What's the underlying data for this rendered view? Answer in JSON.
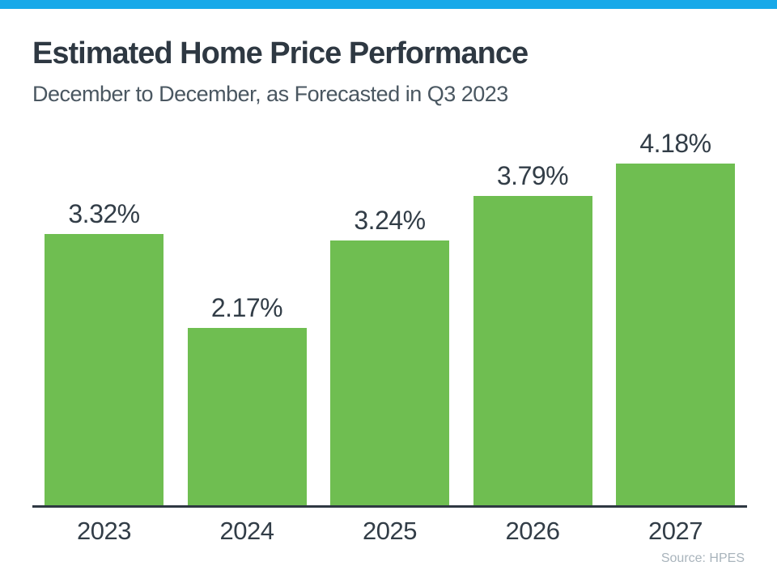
{
  "header": {
    "title": "Estimated Home Price Performance",
    "subtitle": "December to December, as Forecasted in Q3 2023"
  },
  "footer": {
    "source": "Source: HPES"
  },
  "colors": {
    "top_accent_bar": "#18A9E9",
    "bar_fill": "#6FBE51",
    "title_text": "#2E3842",
    "subtitle_text": "#4A5761",
    "label_text": "#323D47",
    "axis_line": "#2E3842",
    "source_text": "#A9B4BC"
  },
  "chart_data": {
    "type": "bar",
    "title": "Estimated Home Price Performance",
    "subtitle": "December to December, as Forecasted in Q3 2023",
    "categories": [
      "2023",
      "2024",
      "2025",
      "2026",
      "2027"
    ],
    "values": [
      3.32,
      2.17,
      3.24,
      3.79,
      4.18
    ],
    "data_labels": [
      "3.32%",
      "2.17%",
      "3.24%",
      "3.79%",
      "4.18%"
    ],
    "xlabel": "",
    "ylabel": "",
    "ylim": [
      0,
      4.6
    ],
    "grid": false,
    "legend": false,
    "y_axis_ticks_visible": false,
    "bar_color": "#6FBE51",
    "source": "Source: HPES"
  }
}
